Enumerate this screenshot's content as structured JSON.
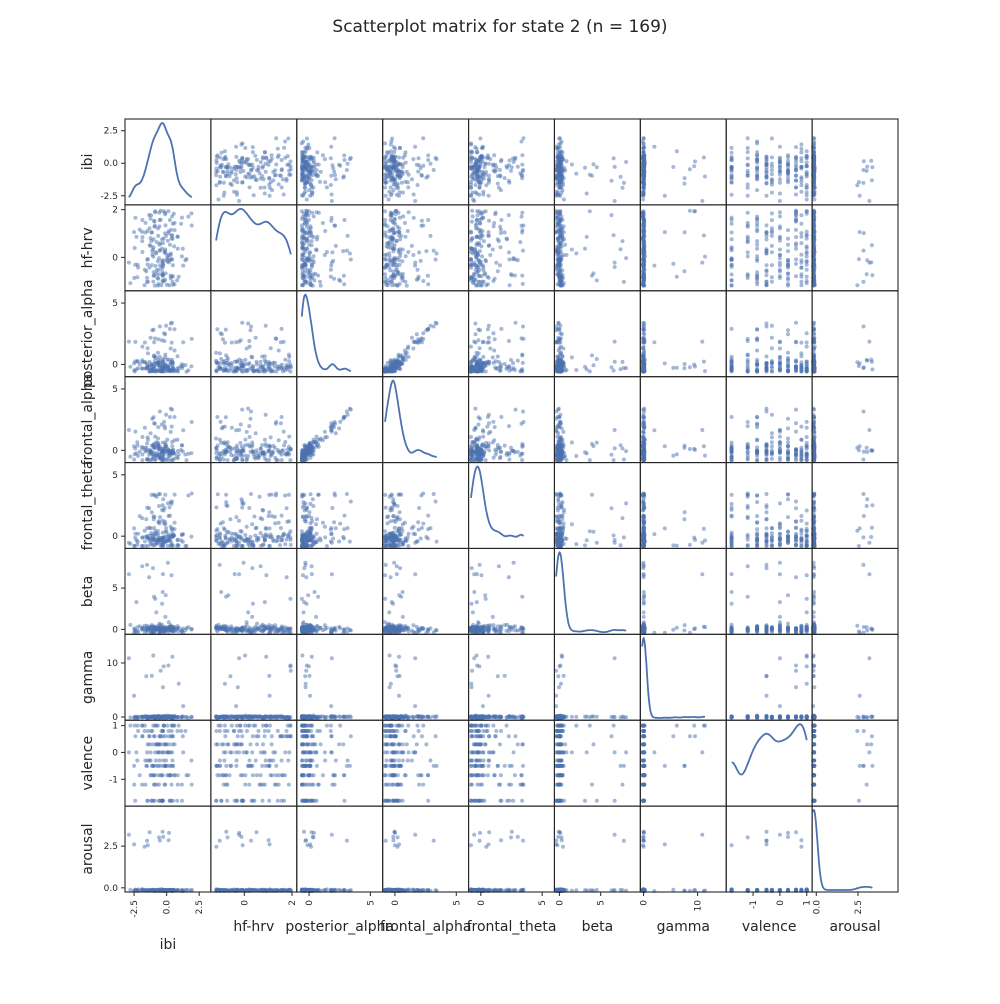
{
  "chart_data": {
    "type": "scatter",
    "title": "Scatterplot matrix for state 2 (n = 169)",
    "n": 169,
    "diagonal": "kde",
    "point_color": "#4c72b0",
    "line_color": "#4c72b0",
    "variables": [
      {
        "name": "ibi",
        "range": [
          -3.2,
          3.4
        ],
        "ticks": [
          -2.5,
          0.0,
          2.5
        ],
        "tick_labels": [
          "-2.5",
          "0.0",
          "2.5"
        ]
      },
      {
        "name": "hf-hrv",
        "range": [
          -1.4,
          2.2
        ],
        "ticks": [
          0,
          2
        ],
        "tick_labels": [
          "0",
          "2"
        ]
      },
      {
        "name": "posterior_alpha",
        "range": [
          -1.0,
          6.0
        ],
        "ticks": [
          0,
          5
        ],
        "tick_labels": [
          "0",
          "5"
        ]
      },
      {
        "name": "frontal_alpha",
        "range": [
          -1.0,
          6.0
        ],
        "ticks": [
          0,
          5
        ],
        "tick_labels": [
          "0",
          "5"
        ]
      },
      {
        "name": "frontal_theta",
        "range": [
          -1.0,
          6.0
        ],
        "ticks": [
          0,
          5
        ],
        "tick_labels": [
          "0",
          "5"
        ]
      },
      {
        "name": "beta",
        "range": [
          -0.6,
          9.8
        ],
        "ticks": [
          0,
          5
        ],
        "tick_labels": [
          "0",
          "5"
        ]
      },
      {
        "name": "gamma",
        "range": [
          -0.6,
          15.3
        ],
        "ticks": [
          0,
          10
        ],
        "tick_labels": [
          "0",
          "10"
        ]
      },
      {
        "name": "valence",
        "range": [
          -2.0,
          1.2
        ],
        "ticks": [
          -1,
          0,
          1
        ],
        "tick_labels": [
          "-1",
          "0",
          "1"
        ]
      },
      {
        "name": "arousal",
        "range": [
          -0.25,
          4.9
        ],
        "ticks": [
          0.0,
          2.5
        ],
        "tick_labels": [
          "0.0",
          "2.5"
        ]
      }
    ],
    "data_points": 169,
    "xlabel": "",
    "ylabel": ""
  }
}
